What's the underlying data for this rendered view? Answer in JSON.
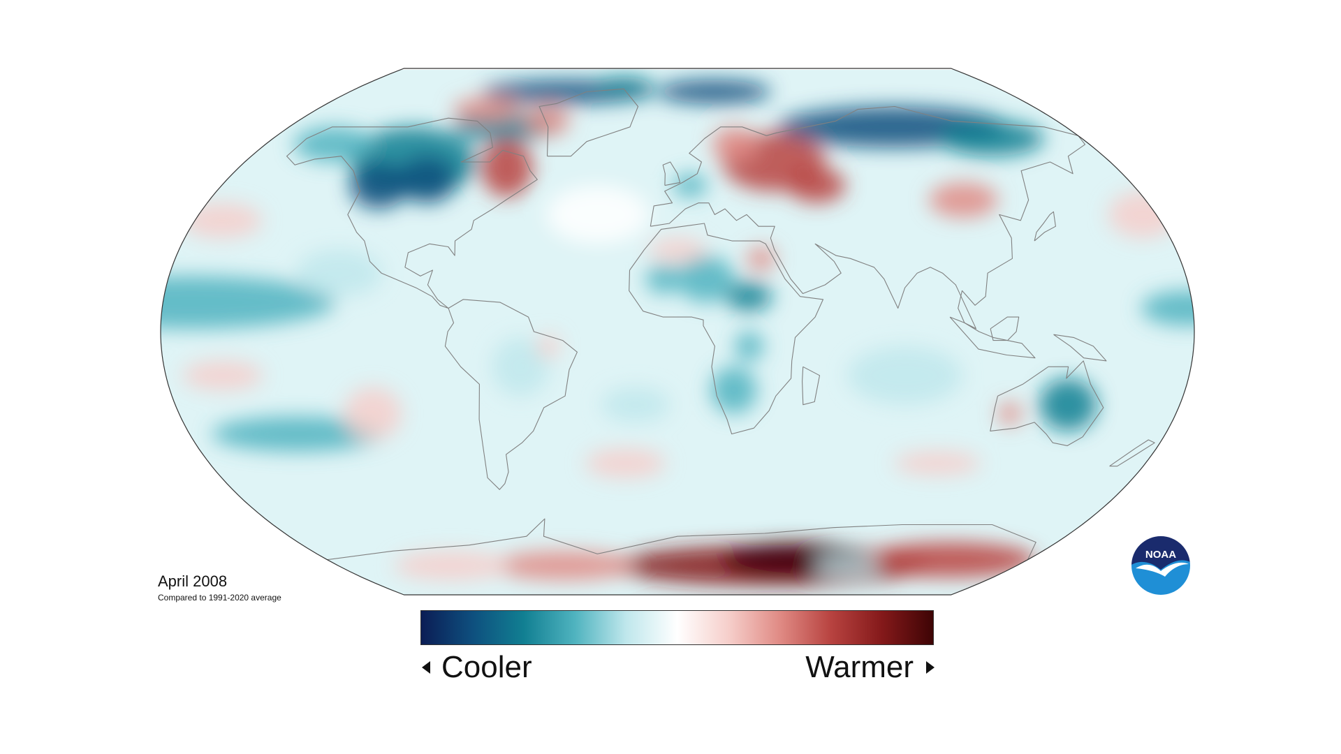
{
  "map": {
    "title": "April 2008",
    "subtitle": "Compared to 1991-2020 average",
    "projection": "robinson",
    "legend": {
      "cool_label": "Cooler",
      "warm_label": "Warmer",
      "scale_colors": [
        "#0b1d55",
        "#0e4f7e",
        "#117f92",
        "#4fb3bf",
        "#bfe7ec",
        "#ffffff",
        "#f6cfcb",
        "#e08b85",
        "#b84340",
        "#84191a",
        "#3e0405"
      ]
    },
    "logo": {
      "text": "NOAA",
      "colors": {
        "top": "#1a2b6d",
        "bottom": "#1f8fd6",
        "bird": "#ffffff"
      }
    },
    "colors": {
      "ocean_base": "#dff4f6",
      "outline": "#333333",
      "coast": "#808080"
    }
  }
}
